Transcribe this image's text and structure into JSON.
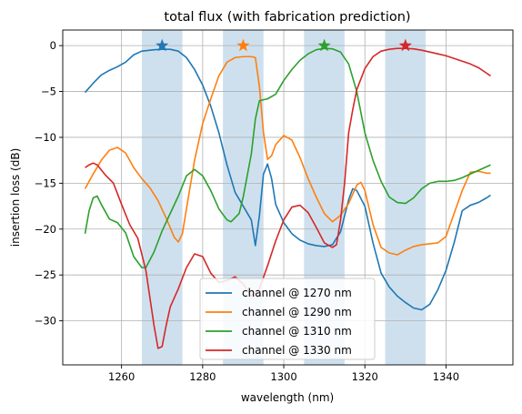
{
  "chart_data": {
    "type": "line",
    "title": "total flux (with fabrication prediction)",
    "xlabel": "wavelength (nm)",
    "ylabel": "insertion loss (dB)",
    "xlim": [
      1245.5,
      1356.5
    ],
    "ylim": [
      -34.8,
      1.7
    ],
    "xticks": [
      1260,
      1280,
      1300,
      1320,
      1340
    ],
    "yticks": [
      0,
      -5,
      -10,
      -15,
      -20,
      -25,
      -30
    ],
    "grid": true,
    "legend_position": "bottom-center",
    "shaded_bands": [
      [
        1265,
        1275
      ],
      [
        1285,
        1295
      ],
      [
        1305,
        1315
      ],
      [
        1325,
        1335
      ]
    ],
    "band_color": "#b4cfe5",
    "series": [
      {
        "name": "channel @ 1270 nm",
        "color": "#1f77b4",
        "marker_x": 1270,
        "marker_y": 0,
        "points": [
          [
            1251,
            -5.1
          ],
          [
            1253,
            -4.1
          ],
          [
            1255,
            -3.2
          ],
          [
            1257,
            -2.7
          ],
          [
            1259,
            -2.3
          ],
          [
            1261,
            -1.8
          ],
          [
            1263,
            -1.0
          ],
          [
            1265,
            -0.6
          ],
          [
            1268,
            -0.45
          ],
          [
            1270,
            -0.4
          ],
          [
            1272,
            -0.4
          ],
          [
            1274,
            -0.6
          ],
          [
            1276,
            -1.3
          ],
          [
            1278,
            -2.6
          ],
          [
            1280,
            -4.3
          ],
          [
            1282,
            -6.6
          ],
          [
            1284,
            -9.5
          ],
          [
            1286,
            -13.0
          ],
          [
            1288,
            -16.0
          ],
          [
            1290,
            -17.5
          ],
          [
            1292,
            -19.0
          ],
          [
            1293,
            -21.8
          ],
          [
            1294,
            -18.5
          ],
          [
            1295,
            -14.0
          ],
          [
            1296,
            -12.9
          ],
          [
            1297,
            -14.5
          ],
          [
            1298,
            -17.3
          ],
          [
            1300,
            -19.3
          ],
          [
            1302,
            -20.5
          ],
          [
            1304,
            -21.2
          ],
          [
            1306,
            -21.6
          ],
          [
            1308,
            -21.8
          ],
          [
            1310,
            -21.9
          ],
          [
            1312,
            -21.7
          ],
          [
            1314,
            -20.3
          ],
          [
            1316,
            -16.8
          ],
          [
            1317,
            -15.6
          ],
          [
            1318,
            -15.8
          ],
          [
            1320,
            -17.5
          ],
          [
            1322,
            -21.5
          ],
          [
            1324,
            -24.8
          ],
          [
            1326,
            -26.3
          ],
          [
            1328,
            -27.3
          ],
          [
            1330,
            -28.0
          ],
          [
            1332,
            -28.6
          ],
          [
            1334,
            -28.8
          ],
          [
            1336,
            -28.2
          ],
          [
            1338,
            -26.6
          ],
          [
            1340,
            -24.5
          ],
          [
            1342,
            -21.5
          ],
          [
            1344,
            -18.0
          ],
          [
            1346,
            -17.4
          ],
          [
            1348,
            -17.1
          ],
          [
            1350,
            -16.6
          ],
          [
            1351,
            -16.3
          ]
        ]
      },
      {
        "name": "channel @ 1290 nm",
        "color": "#ff7f0e",
        "marker_x": 1290,
        "marker_y": 0,
        "points": [
          [
            1251,
            -15.6
          ],
          [
            1253,
            -14.0
          ],
          [
            1255,
            -12.5
          ],
          [
            1257,
            -11.4
          ],
          [
            1259,
            -11.1
          ],
          [
            1261,
            -11.7
          ],
          [
            1263,
            -13.3
          ],
          [
            1265,
            -14.5
          ],
          [
            1267,
            -15.5
          ],
          [
            1269,
            -16.9
          ],
          [
            1271,
            -18.8
          ],
          [
            1273,
            -20.9
          ],
          [
            1274,
            -21.4
          ],
          [
            1275,
            -20.5
          ],
          [
            1276,
            -17.8
          ],
          [
            1278,
            -12.5
          ],
          [
            1280,
            -8.5
          ],
          [
            1282,
            -5.8
          ],
          [
            1284,
            -3.3
          ],
          [
            1286,
            -1.8
          ],
          [
            1288,
            -1.3
          ],
          [
            1290,
            -1.2
          ],
          [
            1292,
            -1.2
          ],
          [
            1293,
            -1.3
          ],
          [
            1294,
            -4.5
          ],
          [
            1295,
            -9.5
          ],
          [
            1296,
            -12.4
          ],
          [
            1297,
            -12.0
          ],
          [
            1298,
            -10.8
          ],
          [
            1300,
            -9.8
          ],
          [
            1302,
            -10.3
          ],
          [
            1304,
            -12.2
          ],
          [
            1306,
            -14.5
          ],
          [
            1308,
            -16.5
          ],
          [
            1310,
            -18.3
          ],
          [
            1312,
            -19.2
          ],
          [
            1314,
            -18.5
          ],
          [
            1316,
            -17.2
          ],
          [
            1318,
            -15.2
          ],
          [
            1319,
            -14.9
          ],
          [
            1320,
            -15.8
          ],
          [
            1322,
            -19.5
          ],
          [
            1324,
            -22.0
          ],
          [
            1326,
            -22.6
          ],
          [
            1328,
            -22.8
          ],
          [
            1330,
            -22.3
          ],
          [
            1332,
            -21.9
          ],
          [
            1334,
            -21.7
          ],
          [
            1336,
            -21.6
          ],
          [
            1338,
            -21.5
          ],
          [
            1340,
            -20.8
          ],
          [
            1342,
            -18.3
          ],
          [
            1344,
            -15.8
          ],
          [
            1346,
            -13.8
          ],
          [
            1348,
            -13.7
          ],
          [
            1350,
            -13.9
          ],
          [
            1351,
            -13.9
          ]
        ]
      },
      {
        "name": "channel @ 1310 nm",
        "color": "#2ca02c",
        "marker_x": 1310,
        "marker_y": 0,
        "points": [
          [
            1251,
            -20.5
          ],
          [
            1252,
            -18.0
          ],
          [
            1253,
            -16.6
          ],
          [
            1254,
            -16.4
          ],
          [
            1255,
            -17.3
          ],
          [
            1257,
            -18.9
          ],
          [
            1259,
            -19.3
          ],
          [
            1261,
            -20.4
          ],
          [
            1263,
            -23.0
          ],
          [
            1265,
            -24.2
          ],
          [
            1266,
            -24.2
          ],
          [
            1268,
            -22.5
          ],
          [
            1270,
            -20.2
          ],
          [
            1272,
            -18.3
          ],
          [
            1274,
            -16.4
          ],
          [
            1276,
            -14.2
          ],
          [
            1278,
            -13.5
          ],
          [
            1280,
            -14.2
          ],
          [
            1282,
            -15.8
          ],
          [
            1284,
            -17.8
          ],
          [
            1286,
            -19.0
          ],
          [
            1287,
            -19.2
          ],
          [
            1289,
            -18.3
          ],
          [
            1290,
            -16.5
          ],
          [
            1292,
            -11.8
          ],
          [
            1293,
            -8.0
          ],
          [
            1294,
            -6.0
          ],
          [
            1296,
            -5.8
          ],
          [
            1298,
            -5.3
          ],
          [
            1300,
            -3.8
          ],
          [
            1302,
            -2.6
          ],
          [
            1304,
            -1.6
          ],
          [
            1306,
            -0.9
          ],
          [
            1308,
            -0.45
          ],
          [
            1310,
            -0.3
          ],
          [
            1312,
            -0.35
          ],
          [
            1314,
            -0.7
          ],
          [
            1316,
            -2.0
          ],
          [
            1318,
            -5.0
          ],
          [
            1320,
            -9.5
          ],
          [
            1322,
            -12.5
          ],
          [
            1324,
            -14.8
          ],
          [
            1326,
            -16.5
          ],
          [
            1328,
            -17.1
          ],
          [
            1330,
            -17.2
          ],
          [
            1332,
            -16.6
          ],
          [
            1334,
            -15.6
          ],
          [
            1336,
            -15.0
          ],
          [
            1338,
            -14.8
          ],
          [
            1340,
            -14.8
          ],
          [
            1342,
            -14.7
          ],
          [
            1344,
            -14.4
          ],
          [
            1346,
            -14.0
          ],
          [
            1348,
            -13.6
          ],
          [
            1350,
            -13.2
          ],
          [
            1351,
            -13.0
          ]
        ]
      },
      {
        "name": "channel @ 1330 nm",
        "color": "#d62728",
        "marker_x": 1330,
        "marker_y": 0,
        "points": [
          [
            1251,
            -13.3
          ],
          [
            1252,
            -13.0
          ],
          [
            1253,
            -12.8
          ],
          [
            1254,
            -13.0
          ],
          [
            1256,
            -14.1
          ],
          [
            1258,
            -15.0
          ],
          [
            1260,
            -17.3
          ],
          [
            1262,
            -19.5
          ],
          [
            1264,
            -21.0
          ],
          [
            1266,
            -24.5
          ],
          [
            1267,
            -27.5
          ],
          [
            1268,
            -30.5
          ],
          [
            1269,
            -33.0
          ],
          [
            1270,
            -32.8
          ],
          [
            1271,
            -30.5
          ],
          [
            1272,
            -28.5
          ],
          [
            1274,
            -26.5
          ],
          [
            1276,
            -24.2
          ],
          [
            1278,
            -22.7
          ],
          [
            1280,
            -23.0
          ],
          [
            1282,
            -24.8
          ],
          [
            1284,
            -25.8
          ],
          [
            1286,
            -25.6
          ],
          [
            1288,
            -25.2
          ],
          [
            1290,
            -26.0
          ],
          [
            1292,
            -27.3
          ],
          [
            1294,
            -26.5
          ],
          [
            1296,
            -24.0
          ],
          [
            1298,
            -21.3
          ],
          [
            1300,
            -19.0
          ],
          [
            1302,
            -17.6
          ],
          [
            1304,
            -17.4
          ],
          [
            1306,
            -18.2
          ],
          [
            1308,
            -19.8
          ],
          [
            1310,
            -21.5
          ],
          [
            1312,
            -22.0
          ],
          [
            1313,
            -21.7
          ],
          [
            1314,
            -19.0
          ],
          [
            1315,
            -15.0
          ],
          [
            1316,
            -9.5
          ],
          [
            1317,
            -7.0
          ],
          [
            1318,
            -4.8
          ],
          [
            1320,
            -2.5
          ],
          [
            1322,
            -1.2
          ],
          [
            1324,
            -0.6
          ],
          [
            1326,
            -0.4
          ],
          [
            1328,
            -0.3
          ],
          [
            1330,
            -0.3
          ],
          [
            1332,
            -0.35
          ],
          [
            1334,
            -0.5
          ],
          [
            1336,
            -0.7
          ],
          [
            1338,
            -0.9
          ],
          [
            1340,
            -1.1
          ],
          [
            1342,
            -1.4
          ],
          [
            1344,
            -1.7
          ],
          [
            1346,
            -2.0
          ],
          [
            1348,
            -2.4
          ],
          [
            1350,
            -3.0
          ],
          [
            1351,
            -3.3
          ]
        ]
      }
    ]
  }
}
